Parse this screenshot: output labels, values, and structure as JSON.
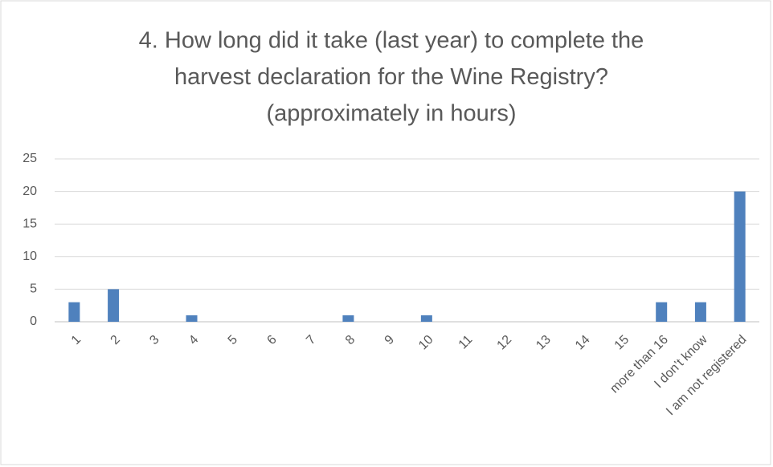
{
  "chart_data": {
    "type": "bar",
    "title": [
      "4. How long did it take (last year) to complete the",
      "harvest declaration for the Wine Registry?",
      "(approximately in hours)"
    ],
    "categories": [
      "1",
      "2",
      "3",
      "4",
      "5",
      "6",
      "7",
      "8",
      "9",
      "10",
      "11",
      "12",
      "13",
      "14",
      "15",
      "more than 16",
      "I don’t know",
      "I am not registered"
    ],
    "values": [
      3,
      5,
      0,
      1,
      0,
      0,
      0,
      1,
      0,
      1,
      0,
      0,
      0,
      0,
      0,
      3,
      3,
      20
    ],
    "color": "#4f81bd",
    "ylim": [
      0,
      25
    ],
    "yticks": [
      0,
      5,
      10,
      15,
      20,
      25
    ],
    "grid": true
  }
}
